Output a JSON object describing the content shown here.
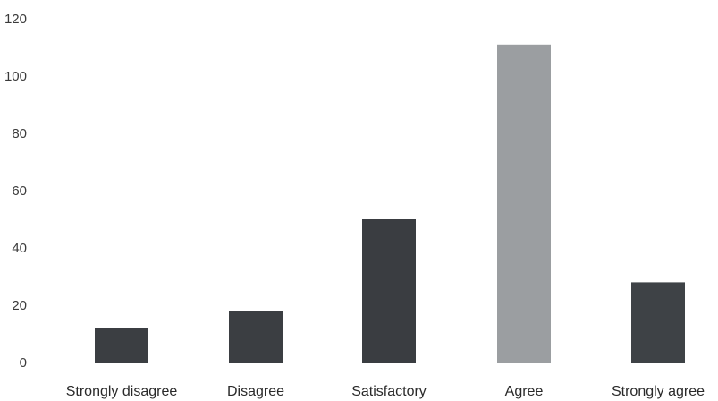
{
  "chart_data": {
    "type": "bar",
    "categories": [
      "Strongly disagree",
      "Disagree",
      "Satisfactory",
      "Agree",
      "Strongly agree"
    ],
    "values": [
      12,
      18,
      50,
      111,
      28
    ],
    "ylim": [
      0,
      120
    ],
    "yticks": [
      0,
      20,
      40,
      60,
      80,
      100,
      120
    ],
    "grid": false,
    "bar_colors": [
      "#3b3e42",
      "#3b3e42",
      "#3a3d41",
      "#9b9ea1",
      "#3e4246"
    ]
  }
}
